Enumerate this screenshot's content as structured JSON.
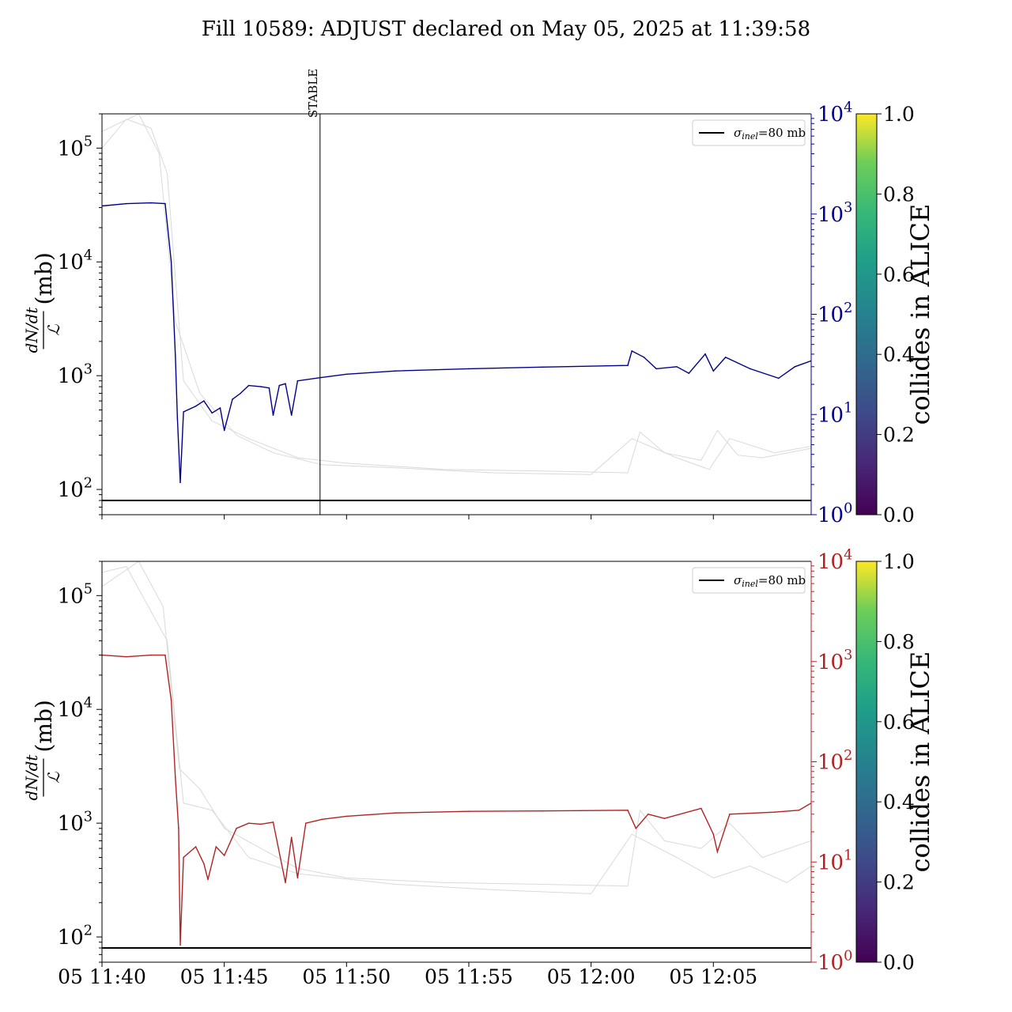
{
  "title": "Fill 10589: ADJUST declared on May 05, 2025 at 11:39:58",
  "colors": {
    "top_series": "#00008b",
    "bottom_series": "#b22222",
    "reference": "#000000",
    "background_lines": "#d9d9d9"
  },
  "chart_data": [
    {
      "type": "line",
      "panel": "top",
      "title": "",
      "ylabel_fraction_num": "dN/dt",
      "ylabel_fraction_den": "ℒ",
      "ylabel_suffix": "(mb)",
      "xlabel": "",
      "yscale": "log",
      "ylim": [
        60,
        200000
      ],
      "y_ticks": [
        100,
        1000,
        10000,
        100000
      ],
      "y_tick_labels": [
        {
          "base": "10",
          "exp": "2"
        },
        {
          "base": "10",
          "exp": "3"
        },
        {
          "base": "10",
          "exp": "4"
        },
        {
          "base": "10",
          "exp": "5"
        }
      ],
      "right_axis": {
        "yscale": "log",
        "ylim": [
          1,
          10000
        ],
        "ticks": [
          1,
          10,
          100,
          1000,
          10000
        ],
        "tick_labels": [
          {
            "base": "10",
            "exp": "0"
          },
          {
            "base": "10",
            "exp": "1"
          },
          {
            "base": "10",
            "exp": "2"
          },
          {
            "base": "10",
            "exp": "3"
          },
          {
            "base": "10",
            "exp": "4"
          }
        ],
        "color": "#00008b"
      },
      "xlim": [
        "2025-05-05 11:40:00",
        "2025-05-05 12:09:00"
      ],
      "x_ticks": [
        "2025-05-05 11:40:00",
        "2025-05-05 11:45:00",
        "2025-05-05 11:50:00",
        "2025-05-05 11:55:00",
        "2025-05-05 12:00:00",
        "2025-05-05 12:05:00"
      ],
      "x_tick_labels": [],
      "reference_line": {
        "y": 80,
        "label_symbol": "σ",
        "label_sub": "inel",
        "label_rest": "=80 mb"
      },
      "marker": {
        "x": "2025-05-05 11:48:55",
        "label": "STABLE"
      },
      "legend": "top-right",
      "series": [
        {
          "color": "#00008b",
          "points": [
            [
              "2025-05-05 11:40:00",
              31000
            ],
            [
              "2025-05-05 11:41:00",
              32500
            ],
            [
              "2025-05-05 11:42:00",
              33000
            ],
            [
              "2025-05-05 11:42:35",
              32500
            ],
            [
              "2025-05-05 11:42:50",
              10000
            ],
            [
              "2025-05-05 11:43:00",
              1500
            ],
            [
              "2025-05-05 11:43:05",
              420
            ],
            [
              "2025-05-05 11:43:12",
              115
            ],
            [
              "2025-05-05 11:43:20",
              480
            ],
            [
              "2025-05-05 11:43:50",
              540
            ],
            [
              "2025-05-05 11:44:10",
              600
            ],
            [
              "2025-05-05 11:44:30",
              470
            ],
            [
              "2025-05-05 11:44:50",
              520
            ],
            [
              "2025-05-05 11:45:00",
              330
            ],
            [
              "2025-05-05 11:45:20",
              620
            ],
            [
              "2025-05-05 11:45:40",
              700
            ],
            [
              "2025-05-05 11:46:00",
              820
            ],
            [
              "2025-05-05 11:46:30",
              800
            ],
            [
              "2025-05-05 11:46:50",
              780
            ],
            [
              "2025-05-05 11:47:00",
              450
            ],
            [
              "2025-05-05 11:47:15",
              820
            ],
            [
              "2025-05-05 11:47:30",
              850
            ],
            [
              "2025-05-05 11:47:45",
              450
            ],
            [
              "2025-05-05 11:48:00",
              900
            ],
            [
              "2025-05-05 11:48:55",
              960
            ],
            [
              "2025-05-05 11:50:00",
              1030
            ],
            [
              "2025-05-05 11:52:00",
              1100
            ],
            [
              "2025-05-05 11:55:00",
              1150
            ],
            [
              "2025-05-05 11:58:00",
              1190
            ],
            [
              "2025-05-05 12:01:30",
              1230
            ],
            [
              "2025-05-05 12:01:40",
              1650
            ],
            [
              "2025-05-05 12:02:10",
              1450
            ],
            [
              "2025-05-05 12:02:40",
              1150
            ],
            [
              "2025-05-05 12:03:30",
              1200
            ],
            [
              "2025-05-05 12:04:00",
              1050
            ],
            [
              "2025-05-05 12:04:40",
              1550
            ],
            [
              "2025-05-05 12:05:00",
              1100
            ],
            [
              "2025-05-05 12:05:30",
              1450
            ],
            [
              "2025-05-05 12:06:30",
              1150
            ],
            [
              "2025-05-05 12:07:40",
              950
            ],
            [
              "2025-05-05 12:08:20",
              1200
            ],
            [
              "2025-05-05 12:09:00",
              1350
            ]
          ]
        }
      ],
      "background_series": [
        [
          [
            "2025-05-05 11:40:00",
            100000
          ],
          [
            "2025-05-05 11:41:00",
            180000
          ],
          [
            "2025-05-05 11:42:00",
            150000
          ],
          [
            "2025-05-05 11:42:40",
            60000
          ],
          [
            "2025-05-05 11:43:20",
            900
          ],
          [
            "2025-05-05 11:44:30",
            400
          ],
          [
            "2025-05-05 11:46:00",
            280
          ],
          [
            "2025-05-05 11:48:00",
            190
          ],
          [
            "2025-05-05 11:50:00",
            170
          ],
          [
            "2025-05-05 11:54:00",
            150
          ],
          [
            "2025-05-05 11:58:00",
            145
          ],
          [
            "2025-05-05 12:01:30",
            140
          ],
          [
            "2025-05-05 12:02:00",
            320
          ],
          [
            "2025-05-05 12:03:00",
            210
          ],
          [
            "2025-05-05 12:04:30",
            180
          ],
          [
            "2025-05-05 12:05:10",
            330
          ],
          [
            "2025-05-05 12:06:00",
            200
          ],
          [
            "2025-05-05 12:07:00",
            190
          ],
          [
            "2025-05-05 12:09:00",
            230
          ]
        ],
        [
          [
            "2025-05-05 11:40:00",
            140000
          ],
          [
            "2025-05-05 11:41:30",
            200000
          ],
          [
            "2025-05-05 11:42:20",
            90000
          ],
          [
            "2025-05-05 11:43:00",
            3000
          ],
          [
            "2025-05-05 11:44:00",
            700
          ],
          [
            "2025-05-05 11:45:30",
            300
          ],
          [
            "2025-05-05 11:47:00",
            210
          ],
          [
            "2025-05-05 11:49:00",
            165
          ],
          [
            "2025-05-05 11:52:00",
            155
          ],
          [
            "2025-05-05 11:56:00",
            140
          ],
          [
            "2025-05-05 12:00:00",
            135
          ],
          [
            "2025-05-05 12:01:40",
            280
          ],
          [
            "2025-05-05 12:03:30",
            190
          ],
          [
            "2025-05-05 12:04:50",
            150
          ],
          [
            "2025-05-05 12:05:40",
            280
          ],
          [
            "2025-05-05 12:07:30",
            210
          ],
          [
            "2025-05-05 12:09:00",
            240
          ]
        ]
      ],
      "colorbar": {
        "label": "collides in ALICE",
        "ticks": [
          "0.0",
          "0.2",
          "0.4",
          "0.6",
          "0.8",
          "1.0"
        ]
      }
    },
    {
      "type": "line",
      "panel": "bottom",
      "title": "",
      "ylabel_fraction_num": "dN/dt",
      "ylabel_fraction_den": "ℒ",
      "ylabel_suffix": "(mb)",
      "xlabel": "",
      "yscale": "log",
      "ylim": [
        60,
        200000
      ],
      "y_ticks": [
        100,
        1000,
        10000,
        100000
      ],
      "y_tick_labels": [
        {
          "base": "10",
          "exp": "2"
        },
        {
          "base": "10",
          "exp": "3"
        },
        {
          "base": "10",
          "exp": "4"
        },
        {
          "base": "10",
          "exp": "5"
        }
      ],
      "right_axis": {
        "yscale": "log",
        "ylim": [
          1,
          10000
        ],
        "ticks": [
          1,
          10,
          100,
          1000,
          10000
        ],
        "tick_labels": [
          {
            "base": "10",
            "exp": "0"
          },
          {
            "base": "10",
            "exp": "1"
          },
          {
            "base": "10",
            "exp": "2"
          },
          {
            "base": "10",
            "exp": "3"
          },
          {
            "base": "10",
            "exp": "4"
          }
        ],
        "color": "#b22222"
      },
      "xlim": [
        "2025-05-05 11:40:00",
        "2025-05-05 12:09:00"
      ],
      "x_ticks": [
        "2025-05-05 11:40:00",
        "2025-05-05 11:45:00",
        "2025-05-05 11:50:00",
        "2025-05-05 11:55:00",
        "2025-05-05 12:00:00",
        "2025-05-05 12:05:00"
      ],
      "x_tick_labels": [
        "05 11:40",
        "05 11:45",
        "05 11:50",
        "05 11:55",
        "05 12:00",
        "05 12:05"
      ],
      "reference_line": {
        "y": 80,
        "label_symbol": "σ",
        "label_sub": "inel",
        "label_rest": "=80 mb"
      },
      "legend": "top-right",
      "series": [
        {
          "color": "#b22222",
          "points": [
            [
              "2025-05-05 11:40:00",
              30000
            ],
            [
              "2025-05-05 11:41:00",
              29000
            ],
            [
              "2025-05-05 11:42:00",
              30000
            ],
            [
              "2025-05-05 11:42:35",
              30000
            ],
            [
              "2025-05-05 11:42:50",
              12000
            ],
            [
              "2025-05-05 11:43:00",
              2500
            ],
            [
              "2025-05-05 11:43:08",
              900
            ],
            [
              "2025-05-05 11:43:12",
              85
            ],
            [
              "2025-05-05 11:43:20",
              500
            ],
            [
              "2025-05-05 11:43:50",
              620
            ],
            [
              "2025-05-05 11:44:10",
              440
            ],
            [
              "2025-05-05 11:44:20",
              320
            ],
            [
              "2025-05-05 11:44:40",
              620
            ],
            [
              "2025-05-05 11:45:00",
              520
            ],
            [
              "2025-05-05 11:45:30",
              900
            ],
            [
              "2025-05-05 11:46:00",
              1000
            ],
            [
              "2025-05-05 11:46:30",
              980
            ],
            [
              "2025-05-05 11:47:00",
              1020
            ],
            [
              "2025-05-05 11:47:30",
              300
            ],
            [
              "2025-05-05 11:47:45",
              750
            ],
            [
              "2025-05-05 11:48:00",
              330
            ],
            [
              "2025-05-05 11:48:20",
              1000
            ],
            [
              "2025-05-05 11:49:00",
              1080
            ],
            [
              "2025-05-05 11:50:00",
              1150
            ],
            [
              "2025-05-05 11:52:00",
              1230
            ],
            [
              "2025-05-05 11:55:00",
              1270
            ],
            [
              "2025-05-05 11:58:00",
              1280
            ],
            [
              "2025-05-05 12:01:30",
              1300
            ],
            [
              "2025-05-05 12:01:50",
              900
            ],
            [
              "2025-05-05 12:02:20",
              1200
            ],
            [
              "2025-05-05 12:03:00",
              1100
            ],
            [
              "2025-05-05 12:04:30",
              1350
            ],
            [
              "2025-05-05 12:05:00",
              800
            ],
            [
              "2025-05-05 12:05:10",
              560
            ],
            [
              "2025-05-05 12:05:40",
              1200
            ],
            [
              "2025-05-05 12:07:30",
              1250
            ],
            [
              "2025-05-05 12:08:30",
              1300
            ],
            [
              "2025-05-05 12:09:00",
              1500
            ]
          ]
        }
      ],
      "background_series": [
        [
          [
            "2025-05-05 11:40:00",
            120000
          ],
          [
            "2025-05-05 11:41:30",
            200000
          ],
          [
            "2025-05-05 11:42:30",
            80000
          ],
          [
            "2025-05-05 11:43:10",
            3000
          ],
          [
            "2025-05-05 11:44:00",
            2000
          ],
          [
            "2025-05-05 11:45:00",
            900
          ],
          [
            "2025-05-05 11:46:30",
            600
          ],
          [
            "2025-05-05 11:48:00",
            400
          ],
          [
            "2025-05-05 11:50:00",
            330
          ],
          [
            "2025-05-05 11:54:00",
            300
          ],
          [
            "2025-05-05 11:58:00",
            290
          ],
          [
            "2025-05-05 12:01:30",
            280
          ],
          [
            "2025-05-05 12:02:00",
            1300
          ],
          [
            "2025-05-05 12:03:00",
            700
          ],
          [
            "2025-05-05 12:04:30",
            600
          ],
          [
            "2025-05-05 12:05:40",
            1000
          ],
          [
            "2025-05-05 12:07:00",
            500
          ],
          [
            "2025-05-05 12:09:00",
            700
          ]
        ],
        [
          [
            "2025-05-05 11:40:00",
            160000
          ],
          [
            "2025-05-05 11:41:00",
            180000
          ],
          [
            "2025-05-05 11:42:40",
            40000
          ],
          [
            "2025-05-05 11:43:20",
            1500
          ],
          [
            "2025-05-05 11:44:30",
            1300
          ],
          [
            "2025-05-05 11:46:00",
            500
          ],
          [
            "2025-05-05 11:48:00",
            360
          ],
          [
            "2025-05-05 11:52:00",
            290
          ],
          [
            "2025-05-05 11:56:00",
            260
          ],
          [
            "2025-05-05 12:00:00",
            240
          ],
          [
            "2025-05-05 12:01:40",
            800
          ],
          [
            "2025-05-05 12:03:30",
            500
          ],
          [
            "2025-05-05 12:05:00",
            330
          ],
          [
            "2025-05-05 12:06:30",
            420
          ],
          [
            "2025-05-05 12:08:00",
            300
          ],
          [
            "2025-05-05 12:09:00",
            420
          ]
        ]
      ],
      "colorbar": {
        "label": "collides in ALICE",
        "ticks": [
          "0.0",
          "0.2",
          "0.4",
          "0.6",
          "0.8",
          "1.0"
        ]
      }
    }
  ]
}
